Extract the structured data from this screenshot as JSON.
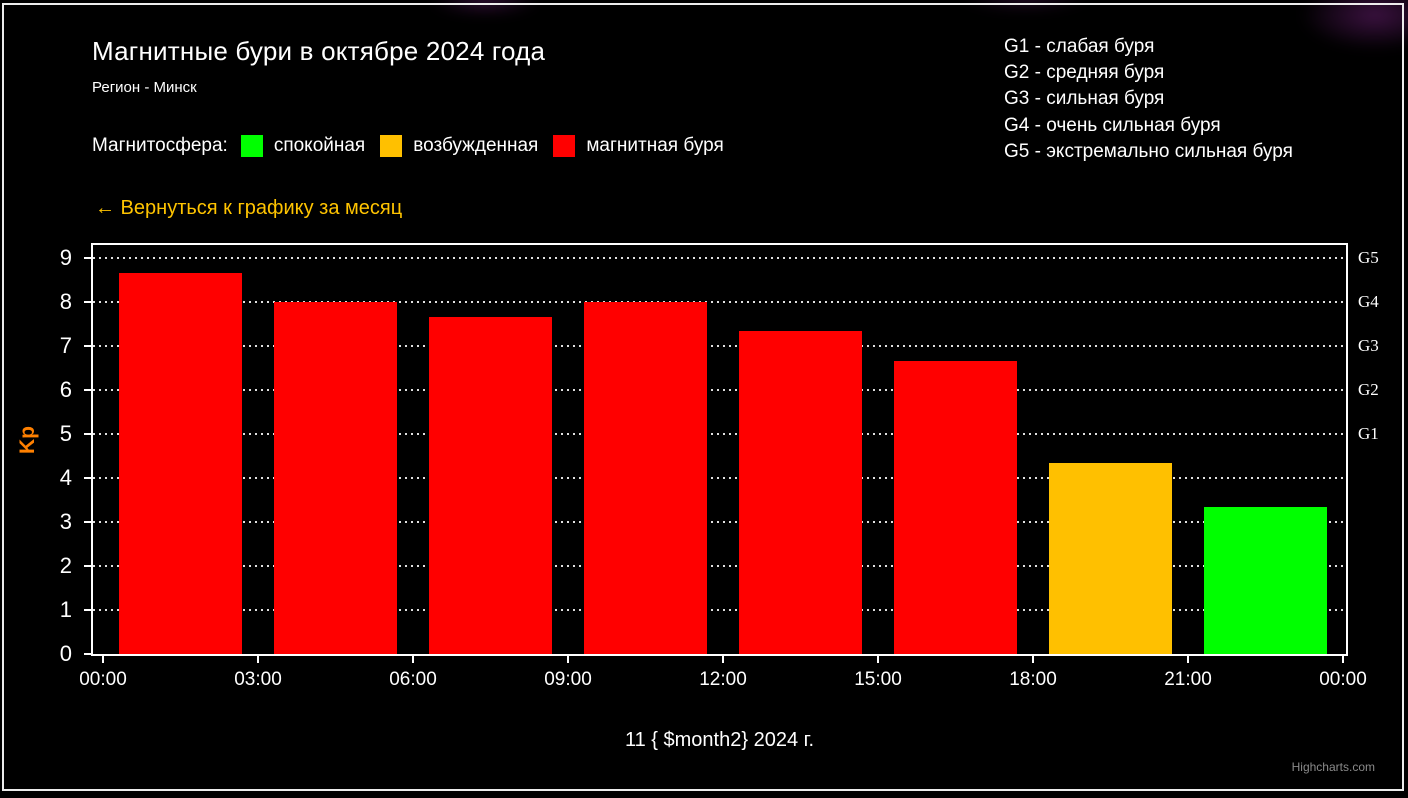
{
  "header": {
    "title": "Магнитные бури в октябре 2024 года",
    "subtitle": "Регион - Минск"
  },
  "legend": {
    "label": "Магнитосфера:",
    "items": [
      {
        "label": "спокойная",
        "color": "#00ff00"
      },
      {
        "label": "возбужденная",
        "color": "#ffc000"
      },
      {
        "label": "магнитная буря",
        "color": "#ff0000"
      }
    ]
  },
  "storm_scale": [
    "G1 - слабая буря",
    "G2 - средняя буря",
    "G3 - сильная буря",
    "G4 - очень сильная буря",
    "G5 - экстремально сильная буря"
  ],
  "back_link": {
    "label": "← Вернуться к графику за месяц",
    "color": "#ffc400"
  },
  "chart_data": {
    "type": "bar",
    "title": "Магнитные бури в октябре 2024 года",
    "subtitle": "Регион - Минск",
    "xlabel": "11 { $month2} 2024 г.",
    "ylabel": "Kp",
    "ylabel_color": "#ff8000",
    "ylim": [
      0,
      9.3
    ],
    "grid": "dotted-horizontal-white",
    "x_ticks": [
      "00:00",
      "03:00",
      "06:00",
      "09:00",
      "12:00",
      "15:00",
      "18:00",
      "21:00",
      "00:00"
    ],
    "y_ticks": [
      0,
      1,
      2,
      3,
      4,
      5,
      6,
      7,
      8,
      9
    ],
    "bars": [
      {
        "kp": 8.67,
        "color": "#ff0000"
      },
      {
        "kp": 8.0,
        "color": "#ff0000"
      },
      {
        "kp": 7.67,
        "color": "#ff0000"
      },
      {
        "kp": 8.0,
        "color": "#ff0000"
      },
      {
        "kp": 7.33,
        "color": "#ff0000"
      },
      {
        "kp": 6.67,
        "color": "#ff0000"
      },
      {
        "kp": 4.33,
        "color": "#ffc000"
      },
      {
        "kp": 3.33,
        "color": "#00ff00"
      }
    ],
    "right_axis_labels": [
      {
        "label": "G5",
        "kp": 9
      },
      {
        "label": "G4",
        "kp": 8
      },
      {
        "label": "G3",
        "kp": 7
      },
      {
        "label": "G2",
        "kp": 6
      },
      {
        "label": "G1",
        "kp": 5
      }
    ],
    "legend_position": "top-left"
  },
  "credits": "Highcharts.com"
}
